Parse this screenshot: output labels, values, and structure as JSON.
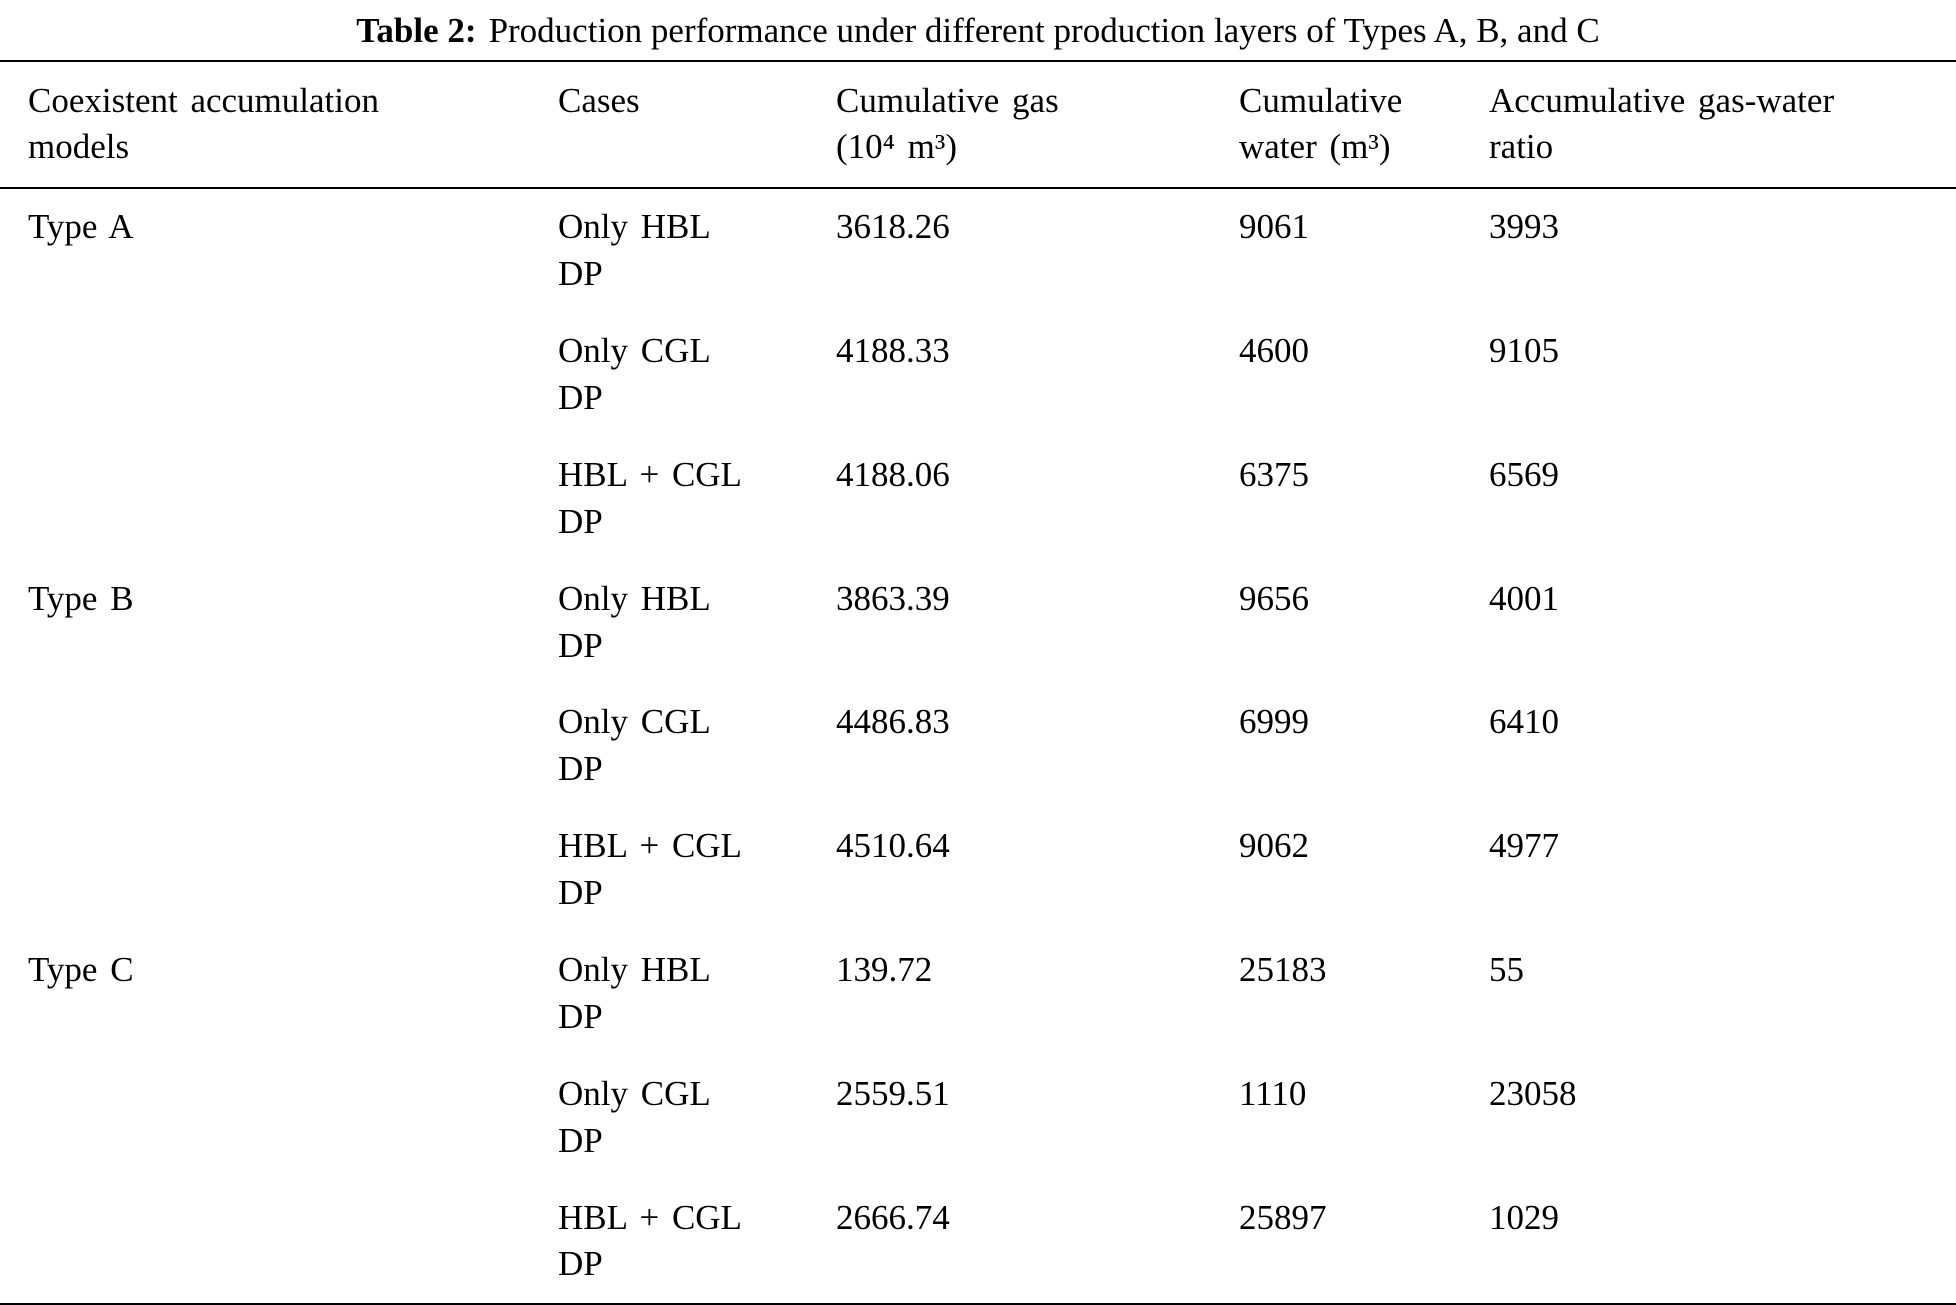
{
  "title": {
    "label": "Table 2:",
    "text": "Production performance under different production layers of Types A, B, and C"
  },
  "header": {
    "models": "Coexistent accumulation\nmodels",
    "cases": "Cases",
    "gas": "Cumulative gas\n(10⁴ m³)",
    "water": "Cumulative\nwater (m³)",
    "ratio": "Accumulative gas-water\nratio"
  },
  "rows": [
    {
      "model": "Type A",
      "case": "Only HBL\nDP",
      "gas": "3618.26",
      "water": "9061",
      "ratio": "3993"
    },
    {
      "model": "",
      "case": "Only CGL\nDP",
      "gas": "4188.33",
      "water": "4600",
      "ratio": "9105"
    },
    {
      "model": "",
      "case": "HBL + CGL\nDP",
      "gas": "4188.06",
      "water": "6375",
      "ratio": "6569"
    },
    {
      "model": "Type B",
      "case": "Only HBL\nDP",
      "gas": "3863.39",
      "water": "9656",
      "ratio": "4001"
    },
    {
      "model": "",
      "case": "Only CGL\nDP",
      "gas": "4486.83",
      "water": "6999",
      "ratio": "6410"
    },
    {
      "model": "",
      "case": "HBL + CGL\nDP",
      "gas": "4510.64",
      "water": "9062",
      "ratio": "4977"
    },
    {
      "model": "Type C",
      "case": "Only HBL\nDP",
      "gas": "139.72",
      "water": "25183",
      "ratio": "55"
    },
    {
      "model": "",
      "case": "Only CGL\nDP",
      "gas": "2559.51",
      "water": "1110",
      "ratio": "23058"
    },
    {
      "model": "",
      "case": "HBL + CGL\nDP",
      "gas": "2666.74",
      "water": "25897",
      "ratio": "1029"
    }
  ]
}
